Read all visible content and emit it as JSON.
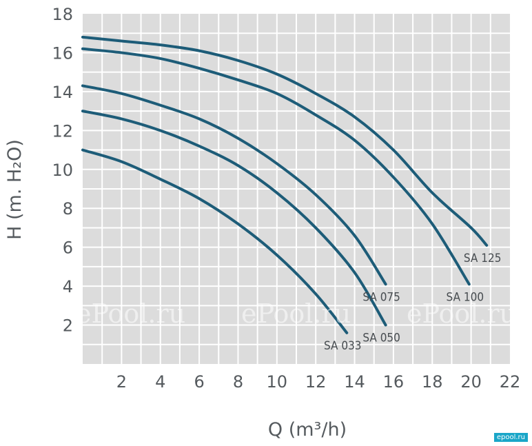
{
  "chart_data": {
    "type": "line",
    "xlabel": "Q (m³/h)",
    "ylabel": "H (m. H₂O)",
    "xlim": [
      0,
      22
    ],
    "ylim": [
      0,
      18
    ],
    "x_ticks": [
      2,
      4,
      6,
      8,
      10,
      12,
      14,
      16,
      18,
      20,
      22
    ],
    "y_ticks": [
      2,
      4,
      6,
      8,
      10,
      12,
      14,
      16,
      18
    ],
    "grid": true,
    "colors": {
      "background": "#dcdcdc",
      "grid": "#ffffff",
      "line": "#1d5c78",
      "text": "#555a5e"
    },
    "series": [
      {
        "name": "SA 125",
        "x": [
          0,
          2,
          4,
          6,
          8,
          10,
          12,
          14,
          16,
          18,
          20,
          20.8
        ],
        "y": [
          16.8,
          16.6,
          16.4,
          16.1,
          15.6,
          14.9,
          13.9,
          12.7,
          11.0,
          8.8,
          7.0,
          6.1
        ]
      },
      {
        "name": "SA 100",
        "x": [
          0,
          2,
          4,
          6,
          8,
          10,
          12,
          14,
          16,
          18,
          19.9
        ],
        "y": [
          16.2,
          16.0,
          15.7,
          15.2,
          14.6,
          13.9,
          12.8,
          11.5,
          9.6,
          7.2,
          4.1
        ]
      },
      {
        "name": "SA 075",
        "x": [
          0,
          2,
          4,
          6,
          8,
          10,
          12,
          14,
          15.6
        ],
        "y": [
          14.3,
          13.9,
          13.3,
          12.6,
          11.6,
          10.3,
          8.7,
          6.6,
          4.1
        ]
      },
      {
        "name": "SA 050",
        "x": [
          0,
          2,
          4,
          6,
          8,
          10,
          12,
          14,
          15.6
        ],
        "y": [
          13.0,
          12.6,
          12.0,
          11.2,
          10.2,
          8.8,
          7.0,
          4.7,
          2.0
        ]
      },
      {
        "name": "SA 033",
        "x": [
          0,
          2,
          4,
          6,
          8,
          10,
          12,
          13.6
        ],
        "y": [
          11.0,
          10.4,
          9.5,
          8.5,
          7.2,
          5.6,
          3.6,
          1.6
        ]
      }
    ],
    "label_positions": [
      "end-below",
      "end-below",
      "end-below",
      "end-below",
      "end-below"
    ],
    "watermark": [
      "ru",
      "ePool.ru",
      "ePool.ru",
      "ePool.ru"
    ]
  },
  "brand_badge": "epool.ru"
}
